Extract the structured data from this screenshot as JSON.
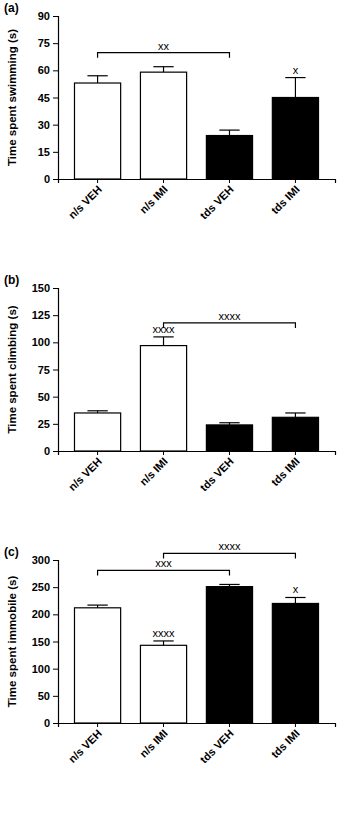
{
  "chart_data": [
    {
      "type": "bar",
      "title": "(a)",
      "y_label": "Time spent swimming (s)",
      "categories": [
        "n/s VEH",
        "n/s IMI",
        "tds VEH",
        "tds IMI"
      ],
      "values": [
        53,
        59,
        24,
        45
      ],
      "errors": [
        4,
        3,
        3,
        11
      ],
      "colors": [
        "#ffffff",
        "#ffffff",
        "#000000",
        "#000000"
      ],
      "ylim": [
        0,
        90
      ],
      "yticks": [
        0,
        15,
        30,
        45,
        60,
        75,
        90
      ],
      "annotations": [
        {
          "text": "xx",
          "categories": [
            "n/s VEH",
            "tds VEH"
          ]
        },
        {
          "text": "x",
          "categories": [
            "tds IMI"
          ]
        }
      ]
    },
    {
      "type": "bar",
      "title": "(b)",
      "y_label": "Time spent climbing (s)",
      "categories": [
        "n/s VEH",
        "n/s IMI",
        "tds VEH",
        "tds IMI"
      ],
      "values": [
        35,
        97,
        24,
        31
      ],
      "errors": [
        2,
        8,
        2,
        4
      ],
      "colors": [
        "#ffffff",
        "#ffffff",
        "#000000",
        "#000000"
      ],
      "ylim": [
        0,
        150
      ],
      "yticks": [
        0,
        25,
        50,
        75,
        100,
        125,
        150
      ],
      "annotations": [
        {
          "text": "xxxx",
          "categories": [
            "n/s IMI"
          ]
        },
        {
          "text": "xxxx",
          "categories": [
            "n/s IMI",
            "tds IMI"
          ]
        }
      ]
    },
    {
      "type": "bar",
      "title": "(c)",
      "y_label": "Time spent immobile (s)",
      "categories": [
        "n/s VEH",
        "n/s IMI",
        "tds VEH",
        "tds IMI"
      ],
      "values": [
        212,
        143,
        251,
        220
      ],
      "errors": [
        5,
        8,
        4,
        11
      ],
      "colors": [
        "#ffffff",
        "#ffffff",
        "#000000",
        "#000000"
      ],
      "ylim": [
        0,
        300
      ],
      "yticks": [
        0,
        50,
        100,
        150,
        200,
        250,
        300
      ],
      "annotations": [
        {
          "text": "xxx",
          "categories": [
            "n/s VEH",
            "tds VEH"
          ]
        },
        {
          "text": "xxxx",
          "categories": [
            "n/s IMI",
            "tds IMI"
          ]
        },
        {
          "text": "xxxx",
          "categories": [
            "n/s IMI"
          ]
        },
        {
          "text": "x",
          "categories": [
            "tds IMI"
          ]
        }
      ]
    }
  ]
}
